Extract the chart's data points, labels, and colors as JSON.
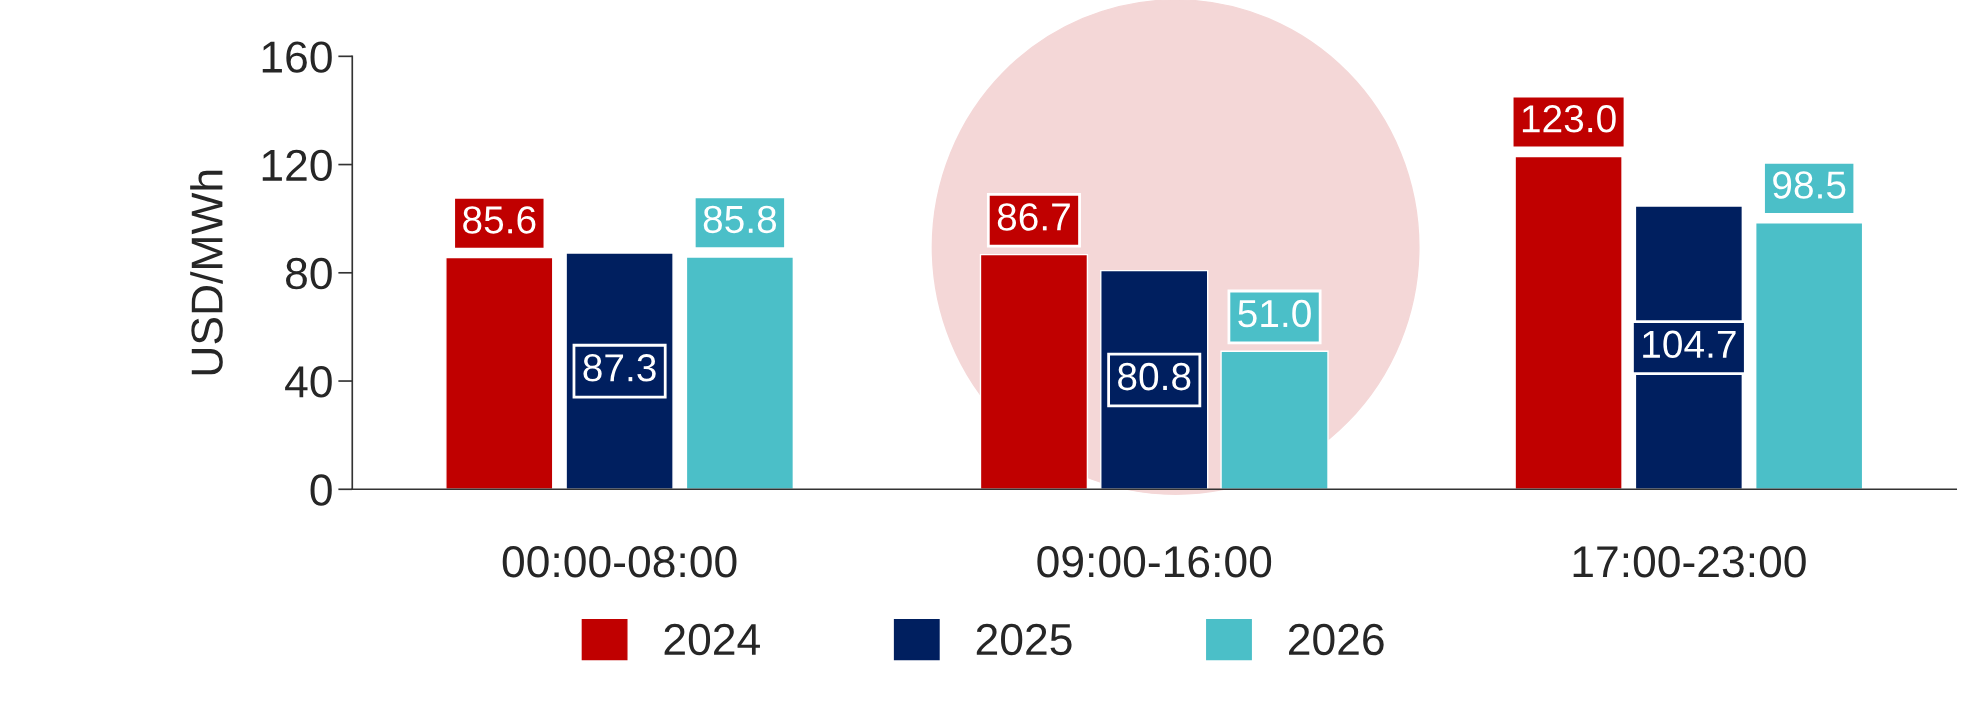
{
  "chart_data": {
    "type": "bar",
    "categories": [
      "00:00-08:00",
      "09:00-16:00",
      "17:00-23:00"
    ],
    "ylabel": "USD/MWh",
    "series": [
      {
        "name": "2024",
        "color": "#c00000",
        "values": [
          85.6,
          86.7,
          123.0
        ],
        "value_labels": [
          "85.6",
          "86.7",
          "123.0"
        ]
      },
      {
        "name": "2025",
        "color": "#001f5f",
        "values": [
          87.3,
          80.8,
          104.7
        ],
        "value_labels": [
          "87.3",
          "80.8",
          "104.7"
        ]
      },
      {
        "name": "2026",
        "color": "#4bbfc8",
        "values": [
          85.8,
          51.0,
          98.5
        ],
        "value_labels": [
          "85.8",
          "51.0",
          "98.5"
        ]
      }
    ],
    "ylim": [
      0,
      160
    ],
    "yticks": [
      0,
      40,
      80,
      120,
      160
    ],
    "grid": false,
    "legend": "bottom"
  }
}
